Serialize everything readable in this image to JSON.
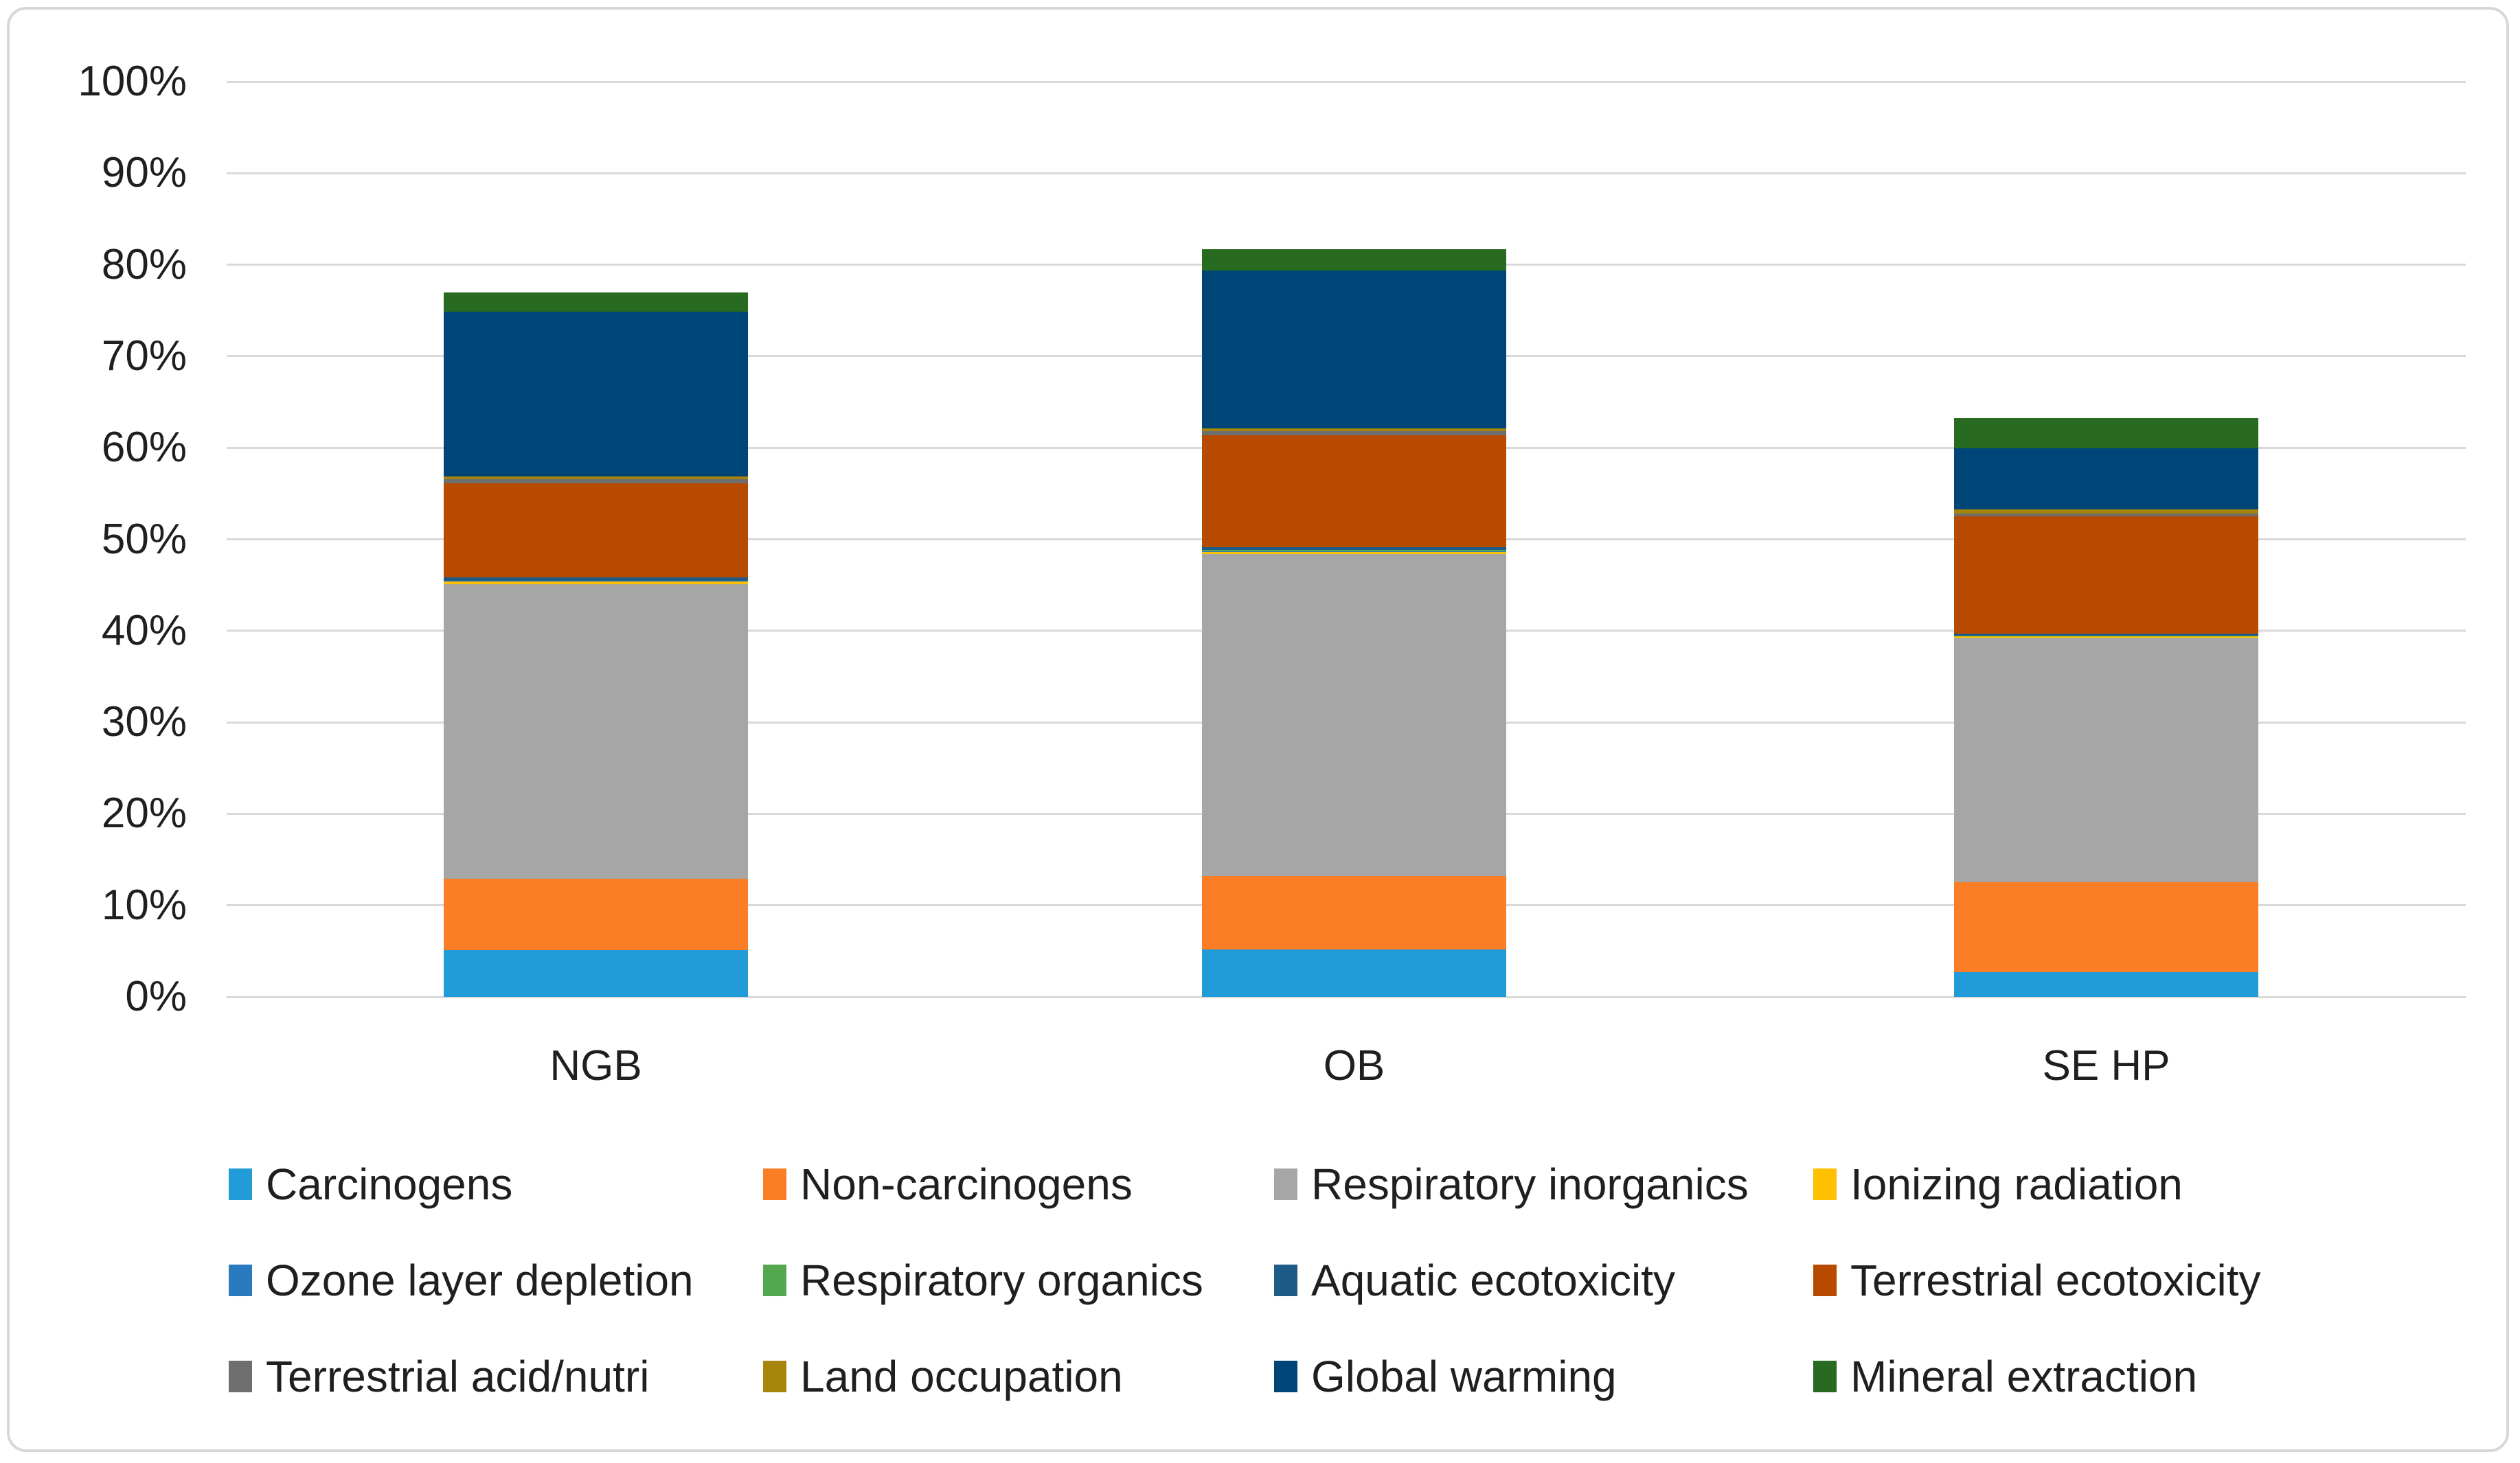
{
  "chart_data": {
    "type": "bar",
    "stacked": true,
    "title": "",
    "xlabel": "",
    "ylabel": "",
    "categories": [
      "NGB",
      "OB",
      "SE HP"
    ],
    "series": [
      {
        "name": "Carcinogens",
        "color": "#219CD8",
        "values": [
          5.1,
          5.2,
          2.7
        ]
      },
      {
        "name": "Non-carcinogens",
        "color": "#FB7D26",
        "values": [
          7.8,
          8.0,
          9.8
        ]
      },
      {
        "name": "Respiratory inorganics",
        "color": "#A6A6A6",
        "values": [
          32.2,
          35.2,
          26.7
        ]
      },
      {
        "name": "Ionizing radiation",
        "color": "#FFC000",
        "values": [
          0.3,
          0.25,
          0.15
        ]
      },
      {
        "name": "Ozone layer depletion",
        "color": "#2A7ABF",
        "values": [
          0.05,
          0.05,
          0.05
        ]
      },
      {
        "name": "Respiratory organics",
        "color": "#53A84F",
        "values": [
          0.05,
          0.15,
          0.05
        ]
      },
      {
        "name": "Aquatic ecotoxicity",
        "color": "#1E5C87",
        "values": [
          0.35,
          0.3,
          0.25
        ]
      },
      {
        "name": "Terrestrial ecotoxicity",
        "color": "#B84A00",
        "values": [
          10.3,
          12.2,
          12.8
        ]
      },
      {
        "name": "Terrestrial acid/nutri",
        "color": "#6E6E6E",
        "values": [
          0.4,
          0.45,
          0.35
        ]
      },
      {
        "name": "Land occupation",
        "color": "#A6850A",
        "values": [
          0.3,
          0.3,
          0.4
        ]
      },
      {
        "name": "Global warming",
        "color": "#004578",
        "values": [
          18.0,
          17.3,
          6.7
        ]
      },
      {
        "name": "Mineral extraction",
        "color": "#276A20",
        "values": [
          2.1,
          2.3,
          3.3
        ]
      }
    ],
    "totals_pct": [
      76.9,
      81.7,
      63.3
    ],
    "ylim": [
      0,
      100
    ],
    "yticks": [
      "0%",
      "10%",
      "20%",
      "30%",
      "40%",
      "50%",
      "60%",
      "70%",
      "80%",
      "90%",
      "100%"
    ],
    "grid": true,
    "gridline_color": "#D9D9D9",
    "legend_position": "bottom"
  }
}
